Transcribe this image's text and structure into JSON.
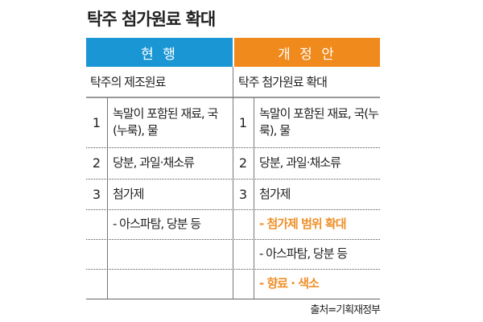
{
  "title": "탁주 첨가원료 확대",
  "colors": {
    "current": "#1a96d4",
    "proposal": "#f08a1c",
    "highlight_text": "#f0902a"
  },
  "current": {
    "header": "현 행",
    "subheader": "탁주의 제조원료",
    "rows": [
      {
        "num": "1",
        "text": "녹말이 포함된 재료, 국(누룩), 물"
      },
      {
        "num": "2",
        "text": "당분, 과일·채소류"
      },
      {
        "num": "3",
        "text": "첨가제"
      },
      {
        "num": "",
        "text": "- 아스파탐, 당분 등"
      },
      {
        "num": "",
        "text": ""
      },
      {
        "num": "",
        "text": ""
      }
    ]
  },
  "proposal": {
    "header": "개 정 안",
    "subheader": "탁주 첨가원료 확대",
    "rows": [
      {
        "num": "1",
        "text": "녹말이 포함된 재료, 국(누룩), 물"
      },
      {
        "num": "2",
        "text": "당분, 과일·채소류"
      },
      {
        "num": "3",
        "text": "첨가제"
      },
      {
        "num": "",
        "text": "- 첨가제 범위 확대",
        "highlight": true
      },
      {
        "num": "",
        "text": " - 아스파탐, 당분 등"
      },
      {
        "num": "",
        "text": "- 향료 · 색소",
        "highlight": true
      }
    ]
  },
  "source": "출처=기획재정부"
}
